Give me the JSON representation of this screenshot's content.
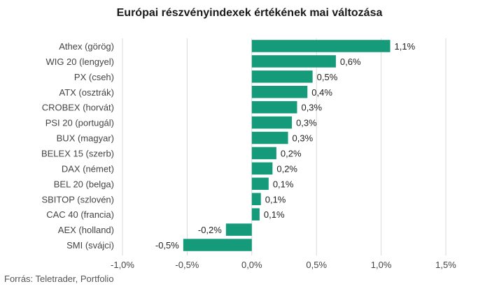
{
  "title": "Európai részvényindexek értékének mai változása",
  "source": "Forrás: Teletrader, Portfolio",
  "colors": {
    "bar": "#159b7a",
    "grid": "#d9d9d9",
    "text": "#444444"
  },
  "chart_data": {
    "type": "bar",
    "orientation": "horizontal",
    "title": "Európai részvényindexek értékének mai változása",
    "categories": [
      "Athex (görög)",
      "WIG 20 (lengyel)",
      "PX (cseh)",
      "ATX (osztrák)",
      "CROBEX (horvát)",
      "PSI 20 (portugál)",
      "BUX (magyar)",
      "BELEX 15 (szerb)",
      "DAX (német)",
      "BEL 20 (belga)",
      "SBITOP (szlovén)",
      "CAC 40 (francia)",
      "AEX (holland)",
      "SMI (svájci)"
    ],
    "values": [
      1.07,
      0.65,
      0.47,
      0.43,
      0.35,
      0.31,
      0.28,
      0.19,
      0.16,
      0.13,
      0.07,
      0.06,
      -0.2,
      -0.53
    ],
    "value_labels": [
      "1,1%",
      "0,6%",
      "0,5%",
      "0,4%",
      "0,3%",
      "0,3%",
      "0,3%",
      "0,2%",
      "0,2%",
      "0,1%",
      "0,1%",
      "0,1%",
      "-0,2%",
      "-0,5%"
    ],
    "xlim": [
      -1.0,
      1.5
    ],
    "xticks": [
      -1.0,
      -0.5,
      0.0,
      0.5,
      1.0,
      1.5
    ],
    "xtick_labels": [
      "-1,0%",
      "-0,5%",
      "0,0%",
      "0,5%",
      "1,0%",
      "1,5%"
    ],
    "grid": true,
    "legend": false
  }
}
